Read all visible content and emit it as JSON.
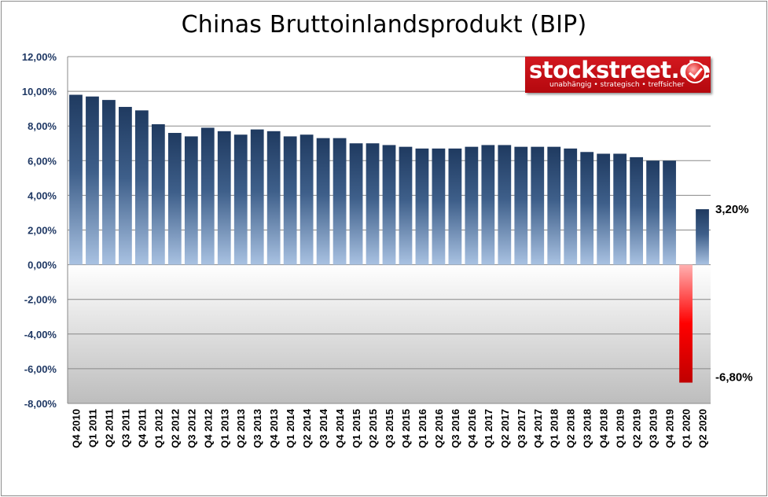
{
  "logo": {
    "name": "stockstreet.de",
    "tagline": "unabhängig • strategisch • treffsicher"
  },
  "colors": {
    "positive_bar_top": "#1f3a60",
    "positive_bar_bottom": "#a9c2e2",
    "negative_bar_top": "#ffb0b0",
    "negative_bar_bottom": "#c00000",
    "gridline": "#888888",
    "tick_label": "#1f3864"
  },
  "chart_data": {
    "type": "bar",
    "title": "Chinas Bruttoinlandsprodukt (BIP)",
    "xlabel": "",
    "ylabel": "",
    "ylim": [
      -8,
      12
    ],
    "yticks": [
      -8,
      -6,
      -4,
      -2,
      0,
      2,
      4,
      6,
      8,
      10,
      12
    ],
    "ytick_labels": [
      "-8,00%",
      "-6,00%",
      "-4,00%",
      "-2,00%",
      "0,00%",
      "2,00%",
      "4,00%",
      "6,00%",
      "8,00%",
      "10,00%",
      "12,00%"
    ],
    "grid": true,
    "categories": [
      "Q4 2010",
      "Q1 2011",
      "Q2 2011",
      "Q3 2011",
      "Q4 2011",
      "Q1 2012",
      "Q2 2012",
      "Q3 2012",
      "Q4 2012",
      "Q1 2013",
      "Q2 2013",
      "Q3 2013",
      "Q4 2013",
      "Q1 2014",
      "Q2 2014",
      "Q3 2014",
      "Q4 2014",
      "Q1 2015",
      "Q2 2015",
      "Q3 2015",
      "Q4 2015",
      "Q1 2016",
      "Q2 2016",
      "Q3 2016",
      "Q4 2016",
      "Q1 2017",
      "Q2 2017",
      "Q3 2017",
      "Q4 2017",
      "Q1 2018",
      "Q2 2018",
      "Q3 2018",
      "Q4 2018",
      "Q1 2019",
      "Q2 2019",
      "Q3 2019",
      "Q4 2019",
      "Q1 2020",
      "Q2 2020"
    ],
    "values": [
      9.8,
      9.7,
      9.5,
      9.1,
      8.9,
      8.1,
      7.6,
      7.4,
      7.9,
      7.7,
      7.5,
      7.8,
      7.7,
      7.4,
      7.5,
      7.3,
      7.3,
      7.0,
      7.0,
      6.9,
      6.8,
      6.7,
      6.7,
      6.7,
      6.8,
      6.9,
      6.9,
      6.8,
      6.8,
      6.8,
      6.7,
      6.5,
      6.4,
      6.4,
      6.2,
      6.0,
      6.0,
      -6.8,
      3.2
    ],
    "annotations": [
      {
        "category": "Q2 2020",
        "text": "3,20%"
      },
      {
        "category": "Q1 2020",
        "text": "-6,80%"
      }
    ]
  }
}
